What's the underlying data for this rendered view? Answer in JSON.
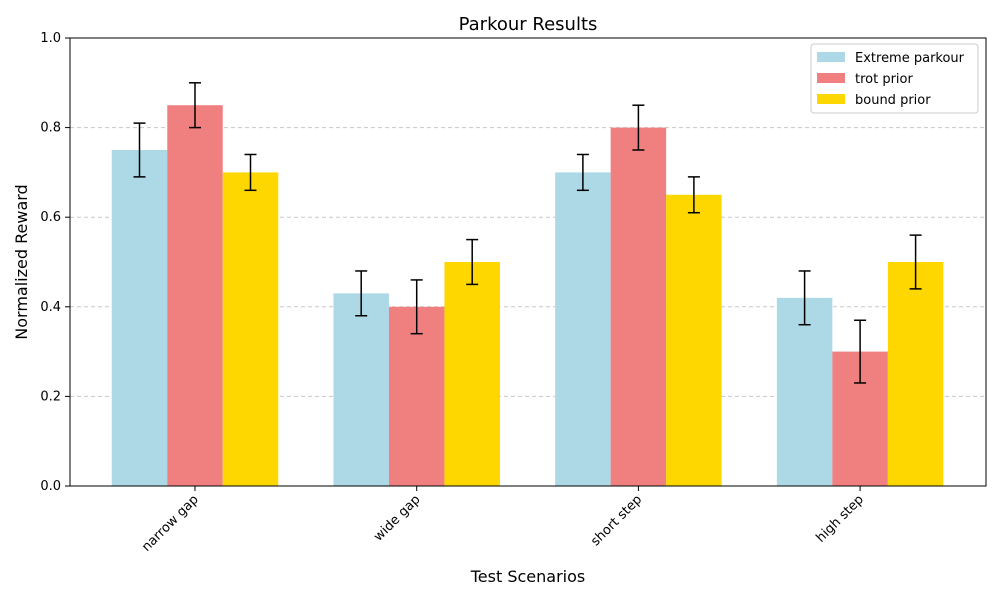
{
  "chart_data": {
    "type": "bar",
    "title": "Parkour Results",
    "xlabel": "Test Scenarios",
    "ylabel": "Normalized Reward",
    "categories": [
      "narrow gap",
      "wide gap",
      "short step",
      "high step"
    ],
    "ylim": [
      0,
      1.0
    ],
    "yticks": [
      "0.0",
      "0.2",
      "0.4",
      "0.6",
      "0.8",
      "1.0"
    ],
    "grid": "y-dashed",
    "legend_position": "top-right",
    "series": [
      {
        "name": "Extreme parkour",
        "color": "#ADD8E6",
        "values": [
          0.75,
          0.43,
          0.7,
          0.42
        ],
        "errors": [
          0.06,
          0.05,
          0.04,
          0.06
        ]
      },
      {
        "name": "trot prior",
        "color": "#F08080",
        "values": [
          0.85,
          0.4,
          0.8,
          0.3
        ],
        "errors": [
          0.05,
          0.06,
          0.05,
          0.07
        ]
      },
      {
        "name": "bound prior",
        "color": "#FFD700",
        "values": [
          0.7,
          0.5,
          0.65,
          0.5
        ],
        "errors": [
          0.04,
          0.05,
          0.04,
          0.06
        ]
      }
    ]
  }
}
